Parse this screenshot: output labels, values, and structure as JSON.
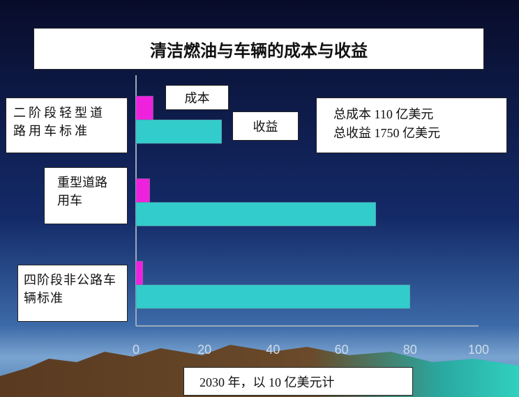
{
  "chart_data": {
    "type": "hbar",
    "title": "清洁燃油与车辆的成本与收益",
    "categories": [
      "二阶段轻型道路用车标准",
      "重型道路用车",
      "四阶段非公路车辆标准"
    ],
    "series": [
      {
        "name": "成本",
        "color": "#ee22dd",
        "values": [
          5,
          4,
          2
        ]
      },
      {
        "name": "收益",
        "color": "#33cccc",
        "values": [
          25,
          70,
          80
        ]
      }
    ],
    "xlim": [
      0,
      100
    ],
    "xticks": [
      0,
      20,
      40,
      60,
      80,
      100
    ],
    "annotations": [
      "总成本 110 亿美元",
      "总收益 1750 亿美元"
    ],
    "xlabel": "2030 年，以 10 亿美元计"
  }
}
